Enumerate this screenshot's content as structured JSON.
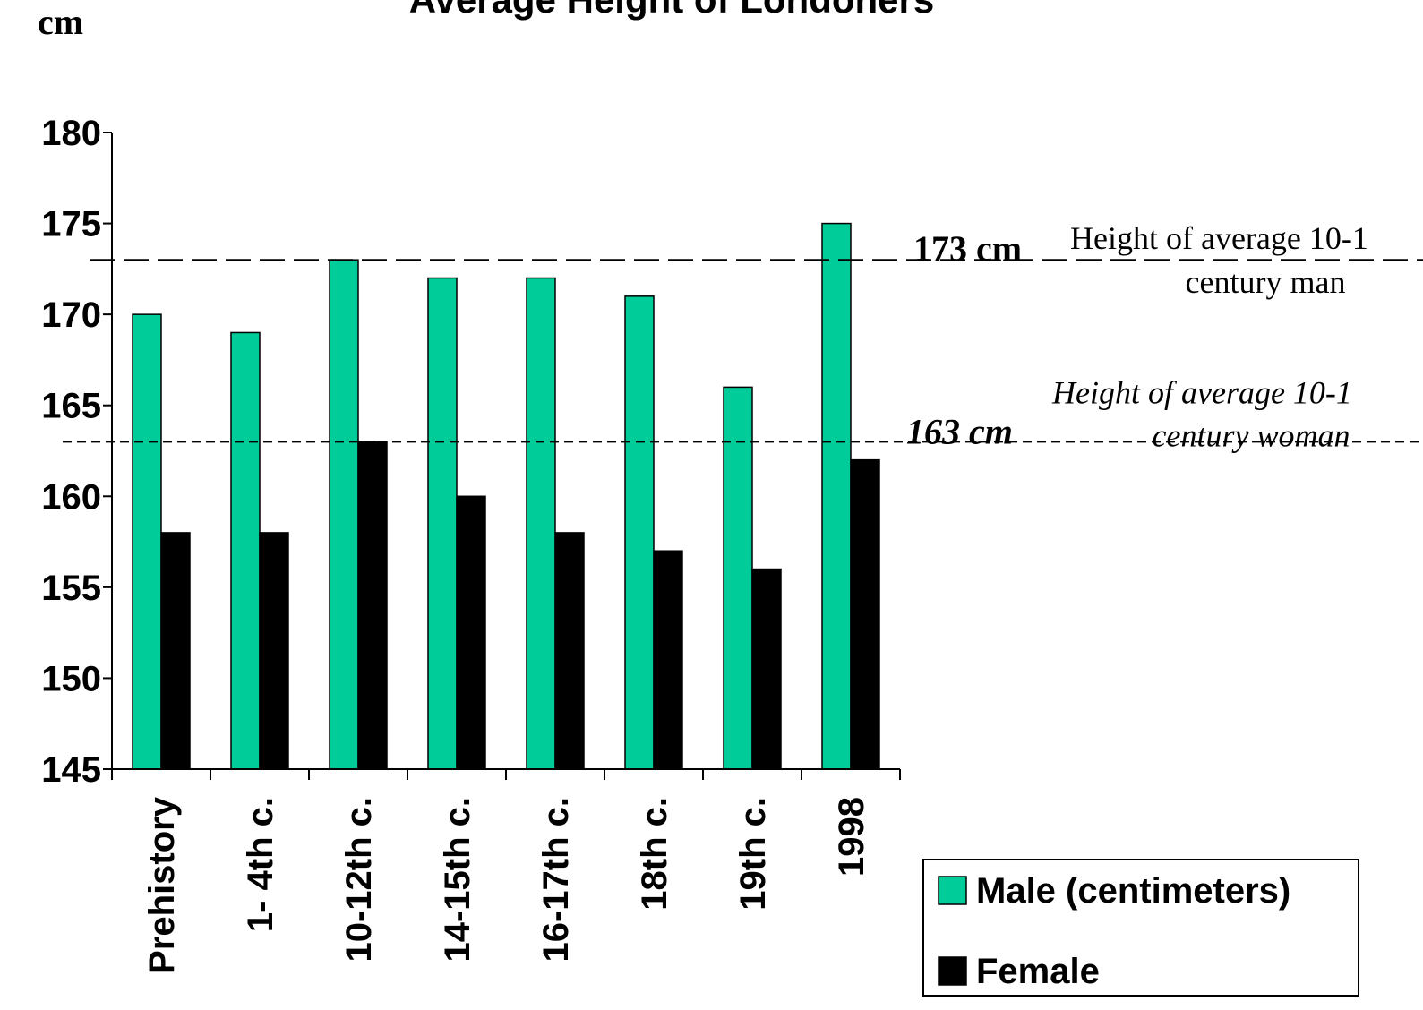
{
  "chart_data": {
    "type": "bar",
    "title": "Average Height of Londoners",
    "y_label": "cm",
    "categories": [
      "Prehistory",
      "1- 4th c.",
      "10-12th c.",
      "14-15th c.",
      "16-17th c.",
      "18th c.",
      "19th c.",
      "1998"
    ],
    "series": [
      {
        "name": "Male (centimeters)",
        "color": "#00cc99",
        "values": [
          170,
          169,
          173,
          172,
          172,
          171,
          166,
          175
        ]
      },
      {
        "name": "Female",
        "color": "#000000",
        "values": [
          158,
          158,
          163,
          160,
          158,
          157,
          156,
          162
        ]
      }
    ],
    "ylim": [
      145,
      180
    ],
    "yticks": [
      145,
      150,
      155,
      160,
      165,
      170,
      175,
      180
    ],
    "reference_lines": [
      {
        "value": 173,
        "label": "173 cm",
        "note": [
          "Height of average 10-1",
          "century man"
        ],
        "style": "long-dash"
      },
      {
        "value": 163,
        "label": "163 cm",
        "note": [
          "Height of average 10-1",
          "century woman"
        ],
        "style": "short-dash"
      }
    ],
    "legend": "bottom-right"
  }
}
